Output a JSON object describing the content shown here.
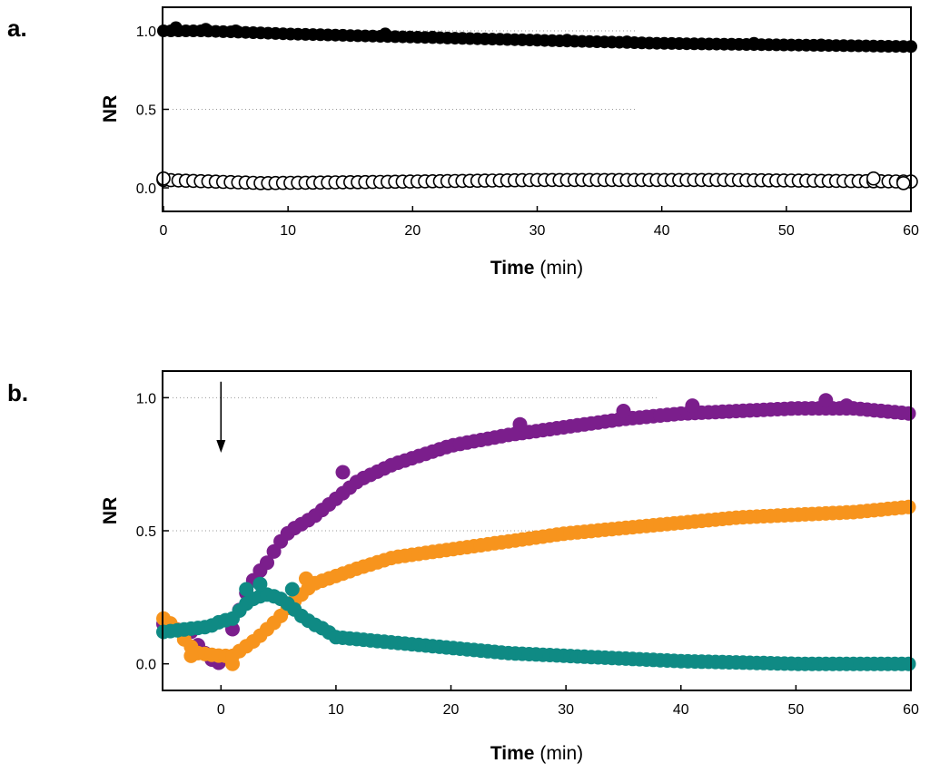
{
  "chart_data": [
    {
      "panel_label": "a.",
      "type": "scatter",
      "xlabel_bold": "Time",
      "xlabel_unit": "(min)",
      "ylabel": "NR",
      "xlim": [
        0,
        60
      ],
      "ylim": [
        -0.15,
        1.15
      ],
      "xticks": [
        0,
        10,
        20,
        30,
        40,
        50,
        60
      ],
      "yticks": [
        0.0,
        0.5,
        1.0
      ],
      "ytick_labels": [
        "0.0",
        "0.5",
        "1.0"
      ],
      "gridlines": [
        0.5,
        1.0
      ],
      "series": [
        {
          "name": "filled",
          "marker": "filled-circle",
          "color": "#000000",
          "x_start": 0,
          "x_step": 0.6,
          "count": 101,
          "profile": [
            [
              0,
              1.0
            ],
            [
              3,
              1.0
            ],
            [
              10,
              0.98
            ],
            [
              20,
              0.96
            ],
            [
              30,
              0.94
            ],
            [
              40,
              0.92
            ],
            [
              50,
              0.91
            ],
            [
              60,
              0.9
            ]
          ],
          "bumps": [
            [
              1,
              1.02
            ],
            [
              3.4,
              1.01
            ],
            [
              5.8,
              1.0
            ],
            [
              17.8,
              0.98
            ],
            [
              21.6,
              0.96
            ],
            [
              32.4,
              0.94
            ],
            [
              37.2,
              0.93
            ],
            [
              47.4,
              0.92
            ],
            [
              52.8,
              0.91
            ]
          ]
        },
        {
          "name": "open",
          "marker": "open-circle",
          "color": "#000000",
          "x_start": 0,
          "x_step": 0.6,
          "count": 101,
          "profile": [
            [
              0,
              0.05
            ],
            [
              8,
              0.03
            ],
            [
              20,
              0.04
            ],
            [
              30,
              0.05
            ],
            [
              45,
              0.05
            ],
            [
              60,
              0.04
            ]
          ],
          "bumps": [
            [
              0,
              0.06
            ],
            [
              57,
              0.06
            ],
            [
              59.4,
              0.03
            ]
          ]
        }
      ]
    },
    {
      "panel_label": "b.",
      "type": "scatter",
      "xlabel_bold": "Time",
      "xlabel_unit": "(min)",
      "ylabel": "NR",
      "xlim": [
        -5,
        60
      ],
      "ylim": [
        -0.1,
        1.1
      ],
      "xticks": [
        0,
        10,
        20,
        30,
        40,
        50,
        60
      ],
      "yticks": [
        0.0,
        0.5,
        1.0
      ],
      "ytick_labels": [
        "0.0",
        "0.5",
        "1.0"
      ],
      "gridlines": [
        0.5,
        1.0
      ],
      "annotation": {
        "type": "arrow",
        "x": 0,
        "y_from": 1.06,
        "y_to": 0.8
      },
      "series": [
        {
          "name": "purple",
          "marker": "filled-circle",
          "color": "#7b1e8c",
          "x_start": -5,
          "x_step": 0.6,
          "count": 109,
          "profile": [
            [
              -5,
              0.15
            ],
            [
              -4,
              0.13
            ],
            [
              -2.5,
              0.12
            ],
            [
              -2,
              0.07
            ],
            [
              -1,
              0.02
            ],
            [
              0,
              0.0
            ],
            [
              0.5,
              0.03
            ],
            [
              1,
              0.13
            ],
            [
              2,
              0.25
            ],
            [
              3,
              0.33
            ],
            [
              4,
              0.38
            ],
            [
              5,
              0.45
            ],
            [
              6,
              0.5
            ],
            [
              8,
              0.55
            ],
            [
              10,
              0.62
            ],
            [
              12,
              0.69
            ],
            [
              15,
              0.75
            ],
            [
              20,
              0.82
            ],
            [
              25,
              0.86
            ],
            [
              30,
              0.89
            ],
            [
              35,
              0.92
            ],
            [
              40,
              0.94
            ],
            [
              45,
              0.95
            ],
            [
              50,
              0.96
            ],
            [
              55,
              0.96
            ],
            [
              60,
              0.94
            ]
          ],
          "bumps": [
            [
              10.6,
              0.72
            ],
            [
              26,
              0.9
            ],
            [
              35,
              0.95
            ],
            [
              41,
              0.97
            ],
            [
              52.6,
              0.99
            ],
            [
              54.4,
              0.97
            ]
          ]
        },
        {
          "name": "orange",
          "marker": "filled-circle",
          "color": "#f7941d",
          "x_start": -5,
          "x_step": 0.6,
          "count": 109,
          "profile": [
            [
              -5,
              0.17
            ],
            [
              -4,
              0.14
            ],
            [
              -3,
              0.08
            ],
            [
              -2,
              0.04
            ],
            [
              0,
              0.03
            ],
            [
              1,
              0.03
            ],
            [
              2,
              0.06
            ],
            [
              3,
              0.09
            ],
            [
              4,
              0.13
            ],
            [
              5,
              0.17
            ],
            [
              6,
              0.22
            ],
            [
              7,
              0.26
            ],
            [
              8,
              0.3
            ],
            [
              10,
              0.33
            ],
            [
              12,
              0.36
            ],
            [
              15,
              0.4
            ],
            [
              20,
              0.43
            ],
            [
              25,
              0.46
            ],
            [
              30,
              0.49
            ],
            [
              35,
              0.51
            ],
            [
              40,
              0.53
            ],
            [
              45,
              0.55
            ],
            [
              50,
              0.56
            ],
            [
              55,
              0.57
            ],
            [
              60,
              0.59
            ]
          ],
          "bumps": [
            [
              -2.6,
              0.03
            ],
            [
              1,
              0.0
            ],
            [
              7.4,
              0.32
            ]
          ]
        },
        {
          "name": "teal",
          "marker": "filled-circle",
          "color": "#0f8a84",
          "x_start": -5,
          "x_step": 0.6,
          "count": 109,
          "profile": [
            [
              -5,
              0.12
            ],
            [
              -3,
              0.13
            ],
            [
              -1,
              0.14
            ],
            [
              0,
              0.16
            ],
            [
              1,
              0.17
            ],
            [
              2,
              0.22
            ],
            [
              3,
              0.25
            ],
            [
              4,
              0.26
            ],
            [
              5,
              0.25
            ],
            [
              6,
              0.22
            ],
            [
              7,
              0.18
            ],
            [
              8,
              0.15
            ],
            [
              9,
              0.13
            ],
            [
              10,
              0.1
            ],
            [
              15,
              0.08
            ],
            [
              20,
              0.06
            ],
            [
              25,
              0.04
            ],
            [
              30,
              0.03
            ],
            [
              35,
              0.02
            ],
            [
              40,
              0.01
            ],
            [
              50,
              0.0
            ],
            [
              60,
              0.0
            ]
          ],
          "bumps": [
            [
              2.2,
              0.28
            ],
            [
              3.4,
              0.3
            ],
            [
              6.2,
              0.28
            ]
          ]
        }
      ]
    }
  ]
}
